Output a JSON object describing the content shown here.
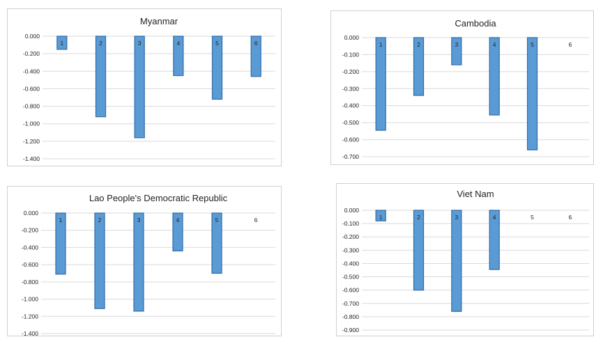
{
  "colors": {
    "bar": "#5b9bd5",
    "bar_edge": "#2e6aa8",
    "grid": "#d9d9d9"
  },
  "chart_data": [
    {
      "type": "bar",
      "title": "Myanmar",
      "categories": [
        "1",
        "2",
        "3",
        "4",
        "5",
        "6"
      ],
      "values": [
        -0.15,
        -0.92,
        -1.16,
        -0.45,
        -0.72,
        -0.46
      ],
      "ylim": [
        -1.4,
        0
      ],
      "yticks": [
        "0.000",
        "-0.200",
        "-0.400",
        "-0.600",
        "-0.800",
        "-1.000",
        "-1.200",
        "-1.400"
      ],
      "grid": true
    },
    {
      "type": "bar",
      "title": "Cambodia",
      "categories": [
        "1",
        "2",
        "3",
        "4",
        "5",
        "6"
      ],
      "values": [
        -0.545,
        -0.34,
        -0.16,
        -0.455,
        -0.66,
        0
      ],
      "ylim": [
        -0.7,
        0
      ],
      "yticks": [
        "0.000",
        "-0.100",
        "-0.200",
        "-0.300",
        "-0.400",
        "-0.500",
        "-0.600",
        "-0.700"
      ],
      "grid": true
    },
    {
      "type": "bar",
      "title": "Lao People's Democratic Republic",
      "categories": [
        "1",
        "2",
        "3",
        "4",
        "5",
        "6"
      ],
      "values": [
        -0.71,
        -1.11,
        -1.14,
        -0.44,
        -0.7,
        0
      ],
      "ylim": [
        -1.4,
        0
      ],
      "yticks": [
        "0.000",
        "-0.200",
        "-0.400",
        "-0.600",
        "-0.800",
        "-1.000",
        "-1.200",
        "-1.400"
      ],
      "grid": true
    },
    {
      "type": "bar",
      "title": "Viet Nam",
      "categories": [
        "1",
        "2",
        "3",
        "4",
        "5",
        "6"
      ],
      "values": [
        -0.08,
        -0.6,
        -0.76,
        -0.445,
        0,
        0
      ],
      "ylim": [
        -0.9,
        0
      ],
      "yticks": [
        "0.000",
        "-0.100",
        "-0.200",
        "-0.300",
        "-0.400",
        "-0.500",
        "-0.600",
        "-0.700",
        "-0.800",
        "-0.900"
      ],
      "grid": true
    }
  ]
}
